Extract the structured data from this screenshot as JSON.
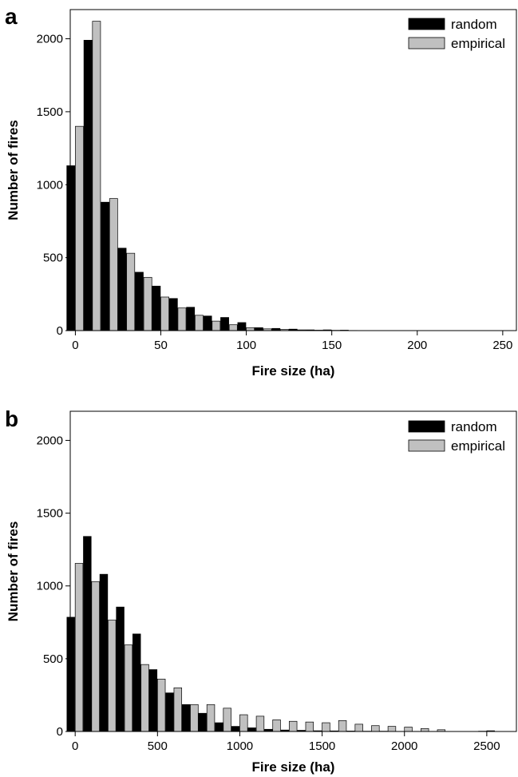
{
  "colors": {
    "random": "#000000",
    "empirical": "#c0c0c0",
    "frame": "#000000"
  },
  "chart_data": [
    {
      "type": "bar",
      "panel_label": "a",
      "xlabel": "Fire size (ha)",
      "ylabel": "Number of fires",
      "xlim": [
        -3,
        258
      ],
      "ylim": [
        0,
        2200
      ],
      "xticks": [
        0,
        50,
        100,
        150,
        200,
        250
      ],
      "yticks": [
        0,
        500,
        1000,
        1500,
        2000
      ],
      "grid": false,
      "legend_position": "top-right",
      "bin_width": 10,
      "x": [
        0,
        10,
        20,
        30,
        40,
        50,
        60,
        70,
        80,
        90,
        100,
        110,
        120,
        130,
        140,
        150,
        160
      ],
      "series": [
        {
          "name": "random",
          "color": "#000000",
          "values": [
            1130,
            1990,
            880,
            565,
            400,
            305,
            220,
            160,
            100,
            90,
            55,
            20,
            15,
            10,
            5,
            5,
            3
          ]
        },
        {
          "name": "empirical",
          "color": "#c0c0c0",
          "values": [
            1400,
            2120,
            905,
            530,
            365,
            230,
            155,
            105,
            65,
            40,
            20,
            12,
            8,
            5,
            3,
            2,
            1
          ]
        }
      ]
    },
    {
      "type": "bar",
      "panel_label": "b",
      "xlabel": "Fire size (ha)",
      "ylabel": "Number of fires",
      "xlim": [
        -30,
        2680
      ],
      "ylim": [
        0,
        2200
      ],
      "xticks": [
        0,
        500,
        1000,
        1500,
        2000,
        2500
      ],
      "yticks": [
        0,
        500,
        1000,
        1500,
        2000
      ],
      "grid": false,
      "legend_position": "top-right",
      "bin_width": 100,
      "x": [
        0,
        100,
        200,
        300,
        400,
        500,
        600,
        700,
        800,
        900,
        1000,
        1100,
        1200,
        1300,
        1400,
        1500,
        1600,
        1700,
        1800,
        1900,
        2000,
        2100,
        2200,
        2500
      ],
      "series": [
        {
          "name": "random",
          "color": "#000000",
          "values": [
            785,
            1340,
            1080,
            855,
            670,
            425,
            265,
            185,
            125,
            60,
            35,
            25,
            15,
            10,
            8,
            5,
            4,
            3,
            2,
            2,
            1,
            1,
            1,
            2
          ]
        },
        {
          "name": "empirical",
          "color": "#c0c0c0",
          "values": [
            1155,
            1030,
            765,
            595,
            460,
            360,
            300,
            185,
            185,
            160,
            115,
            105,
            80,
            70,
            65,
            60,
            75,
            50,
            40,
            35,
            30,
            20,
            12,
            5
          ]
        }
      ]
    }
  ]
}
